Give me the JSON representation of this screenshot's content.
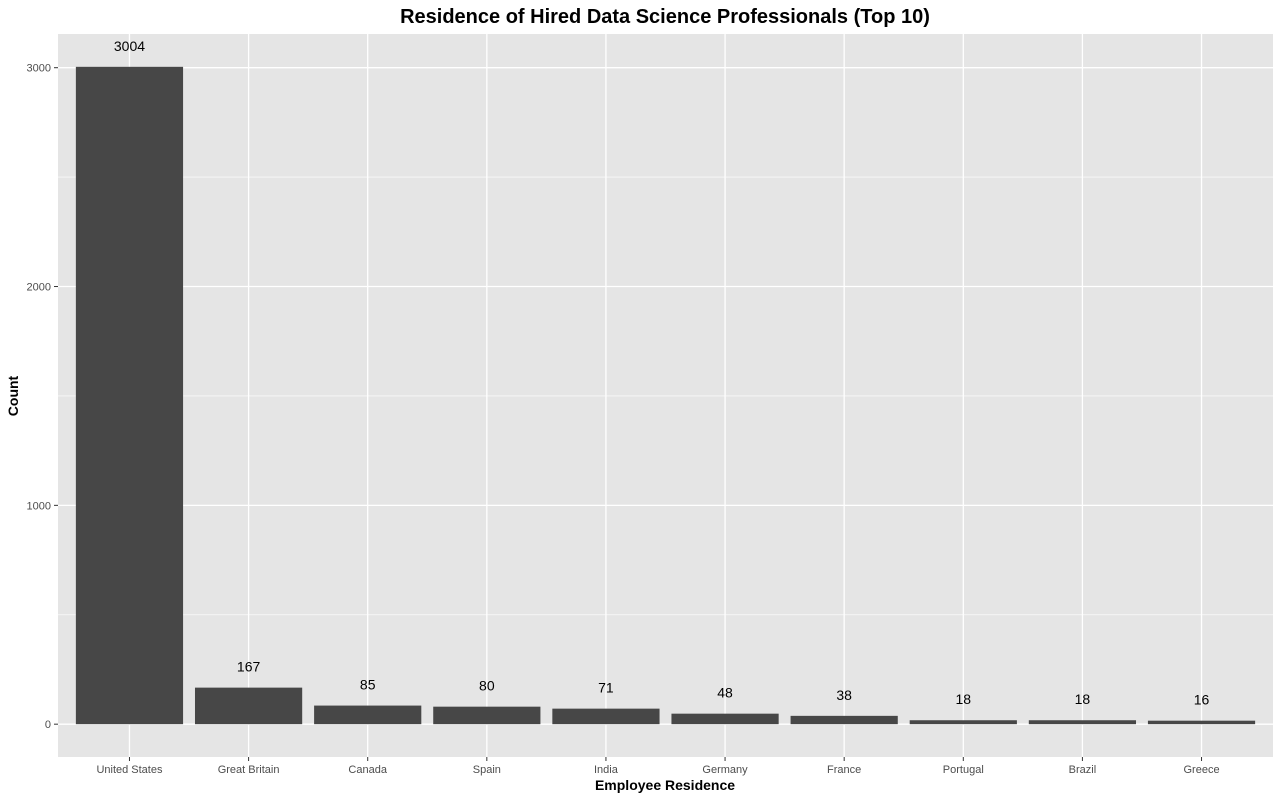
{
  "chart_data": {
    "type": "bar",
    "title": "Residence of Hired Data Science Professionals (Top 10)",
    "xlabel": "Employee Residence",
    "ylabel": "Count",
    "categories": [
      "United States",
      "Great Britain",
      "Canada",
      "Spain",
      "India",
      "Germany",
      "France",
      "Portugal",
      "Brazil",
      "Greece"
    ],
    "values": [
      3004,
      167,
      85,
      80,
      71,
      48,
      38,
      18,
      18,
      16
    ],
    "data_labels": [
      "3004",
      "167",
      "85",
      "80",
      "71",
      "48",
      "38",
      "18",
      "18",
      "16"
    ],
    "y_ticks": [
      0,
      1000,
      2000,
      3000
    ],
    "ylim": [
      -150,
      3154
    ],
    "grid": true,
    "colors": {
      "bar": "#474747",
      "panel": "#e5e5e5",
      "grid": "#ffffff"
    }
  }
}
